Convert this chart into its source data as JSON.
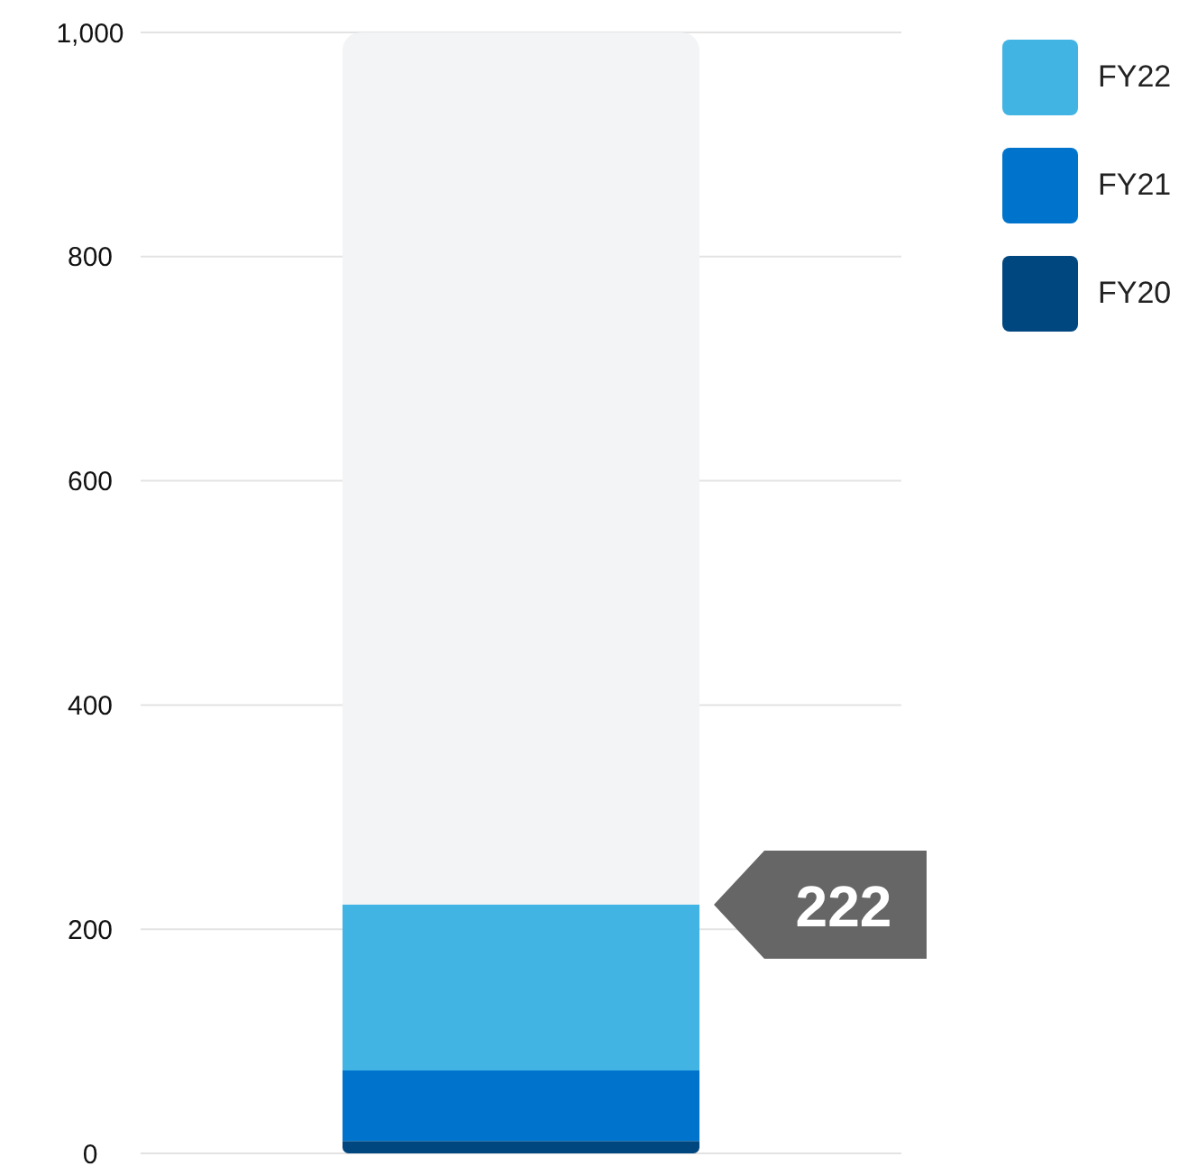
{
  "chart_data": {
    "type": "bar",
    "stacked": true,
    "categories": [
      null
    ],
    "series": [
      {
        "name": "FY20",
        "color": "#00467f",
        "values": [
          11
        ]
      },
      {
        "name": "FY21",
        "color": "#0074cc",
        "values": [
          63
        ]
      },
      {
        "name": "FY22",
        "color": "#42b4e4",
        "values": [
          148
        ]
      },
      {
        "color": "#f3f4f6",
        "values": [
          778
        ]
      }
    ],
    "ylim": [
      0,
      1000
    ],
    "yticks": [
      0,
      {
        "value": 200,
        "label": "200"
      },
      {
        "value": 400,
        "label": "400"
      },
      {
        "value": 600,
        "label": "600"
      },
      {
        "value": 800,
        "label": "800"
      },
      {
        "value": 1000,
        "label": "1,000"
      }
    ],
    "grid": "y",
    "legend": "top right",
    "annotations": [
      "222"
    ]
  }
}
